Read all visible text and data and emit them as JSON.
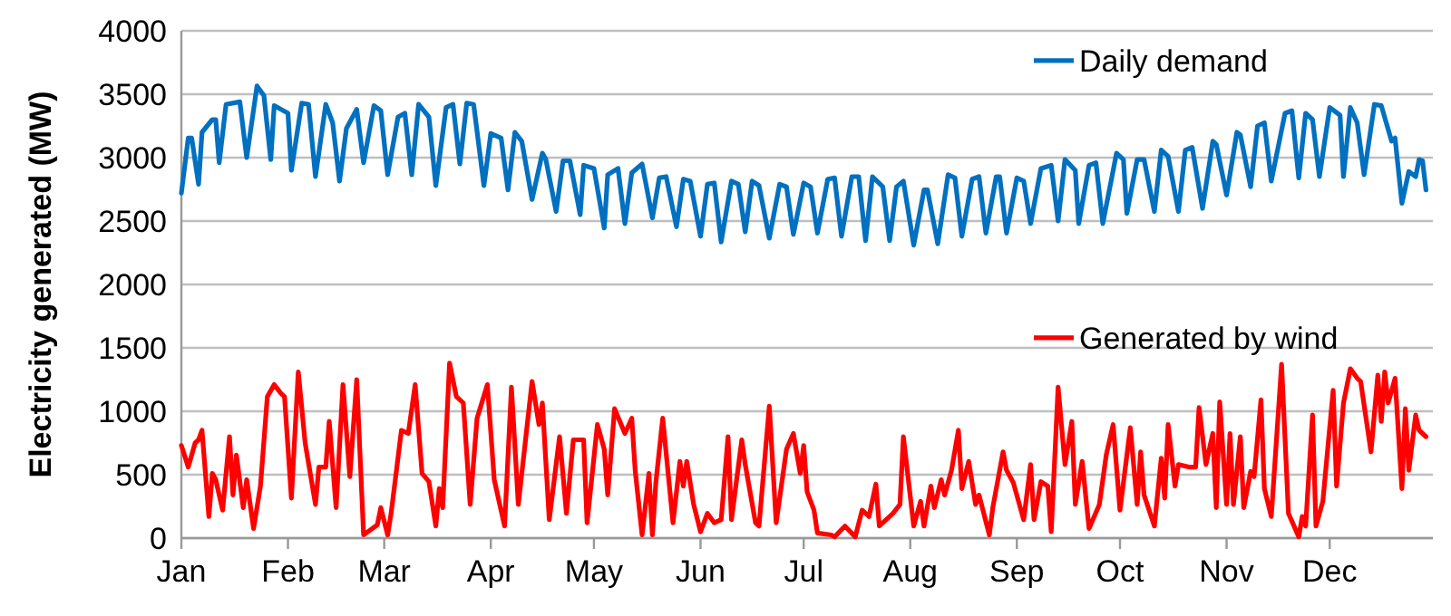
{
  "chart_data": {
    "type": "line",
    "ylabel": "Electricity generated (MW)",
    "xlim": [
      "--01-01",
      "--12-31"
    ],
    "xticks": [
      {
        "value": "--01-01",
        "label": "Jan"
      },
      {
        "value": "--02-01",
        "label": "Feb"
      },
      {
        "value": "--03-01",
        "label": "Mar"
      },
      {
        "value": "--04-01",
        "label": "Apr"
      },
      {
        "value": "--05-01",
        "label": "May"
      },
      {
        "value": "--06-01",
        "label": "Jun"
      },
      {
        "value": "--07-01",
        "label": "Jul"
      },
      {
        "value": "--08-01",
        "label": "Aug"
      },
      {
        "value": "--09-01",
        "label": "Sep"
      },
      {
        "value": "--10-01",
        "label": "Oct"
      },
      {
        "value": "--11-01",
        "label": "Nov"
      },
      {
        "value": "--12-01",
        "label": "Dec"
      }
    ],
    "ylim": [
      0,
      4000
    ],
    "yticks": [
      0,
      500,
      1000,
      1500,
      2000,
      2500,
      3000,
      3500,
      4000
    ],
    "grid": "y",
    "legend": "right",
    "series": [
      {
        "name": "Daily demand",
        "color": "#0070c0",
        "x": [
          "--01-01",
          "--01-03",
          "--01-04",
          "--01-06",
          "--01-07",
          "--01-10",
          "--01-11",
          "--01-12",
          "--01-14",
          "--01-18",
          "--01-20",
          "--01-23",
          "--01-25",
          "--01-27",
          "--01-28",
          "--02-01",
          "--02-02",
          "--02-05",
          "--02-07",
          "--02-09",
          "--02-12",
          "--02-14",
          "--02-16",
          "--02-18",
          "--02-21",
          "--02-23",
          "--02-26",
          "--02-28",
          "--03-02",
          "--03-05",
          "--03-07",
          "--03-09",
          "--03-11",
          "--03-14",
          "--03-16",
          "--03-19",
          "--03-21",
          "--03-23",
          "--03-25",
          "--03-27",
          "--03-30",
          "--04-01",
          "--04-04",
          "--04-06",
          "--04-08",
          "--04-10",
          "--04-13",
          "--04-16",
          "--04-17",
          "--04-20",
          "--04-22",
          "--04-24",
          "--04-27",
          "--04-28",
          "--05-01",
          "--05-04",
          "--05-05",
          "--05-08",
          "--05-10",
          "--05-12",
          "--05-15",
          "--05-18",
          "--05-20",
          "--05-22",
          "--05-25",
          "--05-27",
          "--05-29",
          "--06-01",
          "--06-03",
          "--06-05",
          "--06-07",
          "--06-10",
          "--06-12",
          "--06-14",
          "--06-16",
          "--06-18",
          "--06-21",
          "--06-24",
          "--06-26",
          "--06-28",
          "--07-01",
          "--07-03",
          "--07-05",
          "--07-08",
          "--07-10",
          "--07-12",
          "--07-15",
          "--07-17",
          "--07-19",
          "--07-21",
          "--07-24",
          "--07-26",
          "--07-28",
          "--07-30",
          "--08-02",
          "--08-05",
          "--08-06",
          "--08-09",
          "--08-12",
          "--08-14",
          "--08-16",
          "--08-19",
          "--08-21",
          "--08-23",
          "--08-26",
          "--08-27",
          "--08-29",
          "--09-01",
          "--09-03",
          "--09-05",
          "--09-08",
          "--09-11",
          "--09-13",
          "--09-15",
          "--09-18",
          "--09-19",
          "--09-22",
          "--09-24",
          "--09-26",
          "--09-30",
          "--10-02",
          "--10-03",
          "--10-06",
          "--10-08",
          "--10-11",
          "--10-13",
          "--10-15",
          "--10-18",
          "--10-20",
          "--10-22",
          "--10-25",
          "--10-28",
          "--10-29",
          "--11-01",
          "--11-04",
          "--11-05",
          "--11-08",
          "--11-10",
          "--11-12",
          "--11-14",
          "--11-18",
          "--11-20",
          "--11-22",
          "--11-24",
          "--11-26",
          "--11-28",
          "--12-01",
          "--12-04",
          "--12-05",
          "--12-07",
          "--12-09",
          "--12-11",
          "--12-14",
          "--12-16",
          "--12-19",
          "--12-20",
          "--12-22",
          "--12-24",
          "--12-26",
          "--12-27",
          "--12-28",
          "--12-29"
        ],
        "values": [
          2720,
          3155,
          3155,
          2790,
          3200,
          3300,
          3300,
          2960,
          3420,
          3440,
          3000,
          3565,
          3490,
          2985,
          3410,
          3350,
          2900,
          3430,
          3420,
          2850,
          3420,
          3275,
          2815,
          3230,
          3380,
          2960,
          3410,
          3370,
          2865,
          3320,
          3350,
          2865,
          3420,
          3320,
          2780,
          3395,
          3420,
          2950,
          3430,
          3420,
          2780,
          3190,
          3155,
          2745,
          3200,
          3130,
          2670,
          3035,
          2985,
          2575,
          2975,
          2975,
          2550,
          2940,
          2915,
          2445,
          2865,
          2915,
          2480,
          2880,
          2950,
          2525,
          2840,
          2850,
          2455,
          2830,
          2815,
          2380,
          2790,
          2800,
          2335,
          2815,
          2790,
          2415,
          2815,
          2780,
          2365,
          2790,
          2770,
          2395,
          2800,
          2770,
          2405,
          2830,
          2840,
          2380,
          2850,
          2850,
          2345,
          2850,
          2770,
          2345,
          2770,
          2815,
          2310,
          2745,
          2745,
          2320,
          2865,
          2840,
          2380,
          2830,
          2850,
          2405,
          2850,
          2850,
          2405,
          2840,
          2815,
          2480,
          2915,
          2940,
          2500,
          2985,
          2900,
          2480,
          2940,
          2960,
          2480,
          3035,
          2985,
          2560,
          2985,
          2985,
          2575,
          3060,
          3010,
          2575,
          3060,
          3080,
          2600,
          3130,
          3105,
          2705,
          3200,
          3180,
          2770,
          3250,
          3275,
          2815,
          3350,
          3370,
          2840,
          3350,
          3300,
          2850,
          3395,
          3335,
          2850,
          3395,
          3275,
          2865,
          3420,
          3410,
          3130,
          3155,
          2640,
          2890,
          2850,
          2985,
          2975,
          2745
        ]
      },
      {
        "name": "Generated by wind",
        "color": "#ff0000",
        "x": [
          "--01-01",
          "--01-03",
          "--01-05",
          "--01-06",
          "--01-07",
          "--01-09",
          "--01-10",
          "--01-11",
          "--01-13",
          "--01-15",
          "--01-16",
          "--01-17",
          "--01-19",
          "--01-20",
          "--01-22",
          "--01-24",
          "--01-26",
          "--01-28",
          "--01-30",
          "--01-31",
          "--02-02",
          "--02-04",
          "--02-06",
          "--02-09",
          "--02-10",
          "--02-12",
          "--02-13",
          "--02-15",
          "--02-17",
          "--02-19",
          "--02-21",
          "--02-23",
          "--02-27",
          "--02-28",
          "--03-02",
          "--03-03",
          "--03-06",
          "--03-08",
          "--03-10",
          "--03-12",
          "--03-14",
          "--03-16",
          "--03-17",
          "--03-18",
          "--03-20",
          "--03-22",
          "--03-24",
          "--03-26",
          "--03-28",
          "--03-31",
          "--04-02",
          "--04-05",
          "--04-07",
          "--04-09",
          "--04-13",
          "--04-15",
          "--04-16",
          "--04-18",
          "--04-21",
          "--04-23",
          "--04-25",
          "--04-28",
          "--04-29",
          "--05-02",
          "--05-04",
          "--05-05",
          "--05-07",
          "--05-10",
          "--05-12",
          "--05-13",
          "--05-15",
          "--05-17",
          "--05-18",
          "--05-19",
          "--05-21",
          "--05-24",
          "--05-26",
          "--05-27",
          "--05-28",
          "--05-30",
          "--06-01",
          "--06-03",
          "--06-05",
          "--06-07",
          "--06-09",
          "--06-10",
          "--06-13",
          "--06-14",
          "--06-17",
          "--06-18",
          "--06-21",
          "--06-23",
          "--06-26",
          "--06-28",
          "--06-30",
          "--07-01",
          "--07-02",
          "--07-04",
          "--07-05",
          "--07-09",
          "--07-10",
          "--07-13",
          "--07-16",
          "--07-18",
          "--07-20",
          "--07-22",
          "--07-23",
          "--07-27",
          "--07-29",
          "--07-30",
          "--08-02",
          "--08-04",
          "--08-05",
          "--08-07",
          "--08-08",
          "--08-10",
          "--08-11",
          "--08-13",
          "--08-15",
          "--08-16",
          "--08-18",
          "--08-20",
          "--08-21",
          "--08-24",
          "--08-25",
          "--08-28",
          "--08-29",
          "--08-31",
          "--09-02",
          "--09-03",
          "--09-05",
          "--09-06",
          "--09-08",
          "--09-10",
          "--09-11",
          "--09-13",
          "--09-15",
          "--09-17",
          "--09-18",
          "--09-20",
          "--09-22",
          "--09-25",
          "--09-27",
          "--09-29",
          "--10-01",
          "--10-04",
          "--10-06",
          "--10-07",
          "--10-08",
          "--10-11",
          "--10-13",
          "--10-14",
          "--10-15",
          "--10-17",
          "--10-18",
          "--10-21",
          "--10-23",
          "--10-24",
          "--10-26",
          "--10-28",
          "--10-29",
          "--10-30",
          "--11-01",
          "--11-02",
          "--11-03",
          "--11-05",
          "--11-06",
          "--11-08",
          "--11-09",
          "--11-11",
          "--11-12",
          "--11-14",
          "--11-17",
          "--11-19",
          "--11-22",
          "--11-23",
          "--11-24",
          "--11-26",
          "--11-27",
          "--11-29",
          "--12-02",
          "--12-03",
          "--12-05",
          "--12-07",
          "--12-09",
          "--12-10",
          "--12-13",
          "--12-15",
          "--12-16",
          "--12-17",
          "--12-18",
          "--12-20",
          "--12-22",
          "--12-23",
          "--12-24",
          "--12-26",
          "--12-27",
          "--12-29"
        ],
        "values": [
          730,
          560,
          750,
          775,
          850,
          170,
          510,
          460,
          220,
          800,
          340,
          655,
          240,
          460,
          75,
          410,
          1115,
          1210,
          1140,
          1115,
          315,
          1310,
          750,
          265,
          560,
          560,
          920,
          240,
          1210,
          485,
          1250,
          25,
          105,
          240,
          25,
          195,
          850,
          825,
          1210,
          510,
          445,
          95,
          390,
          240,
          1380,
          1115,
          1065,
          265,
          945,
          1210,
          460,
          95,
          1190,
          265,
          1235,
          895,
          1065,
          145,
          800,
          195,
          775,
          775,
          120,
          895,
          700,
          340,
          1020,
          825,
          945,
          530,
          25,
          510,
          25,
          435,
          945,
          120,
          605,
          410,
          605,
          265,
          50,
          195,
          120,
          145,
          800,
          145,
          775,
          580,
          120,
          95,
          1040,
          120,
          700,
          825,
          510,
          730,
          365,
          220,
          40,
          25,
          10,
          95,
          10,
          220,
          170,
          425,
          95,
          195,
          265,
          800,
          95,
          290,
          95,
          410,
          240,
          460,
          340,
          535,
          850,
          390,
          605,
          265,
          340,
          25,
          240,
          680,
          535,
          435,
          240,
          145,
          580,
          145,
          445,
          410,
          50,
          1190,
          580,
          920,
          265,
          605,
          75,
          265,
          655,
          895,
          220,
          870,
          265,
          680,
          340,
          95,
          630,
          315,
          895,
          410,
          580,
          560,
          560,
          1030,
          580,
          825,
          240,
          1075,
          265,
          825,
          265,
          800,
          240,
          525,
          485,
          1090,
          390,
          170,
          1370,
          195,
          10,
          170,
          95,
          970,
          95,
          290,
          1165,
          410,
          1065,
          1335,
          1260,
          1235,
          680,
          1285,
          920,
          1310,
          1065,
          1260,
          390,
          1020,
          535,
          970,
          850,
          800
        ]
      }
    ]
  }
}
